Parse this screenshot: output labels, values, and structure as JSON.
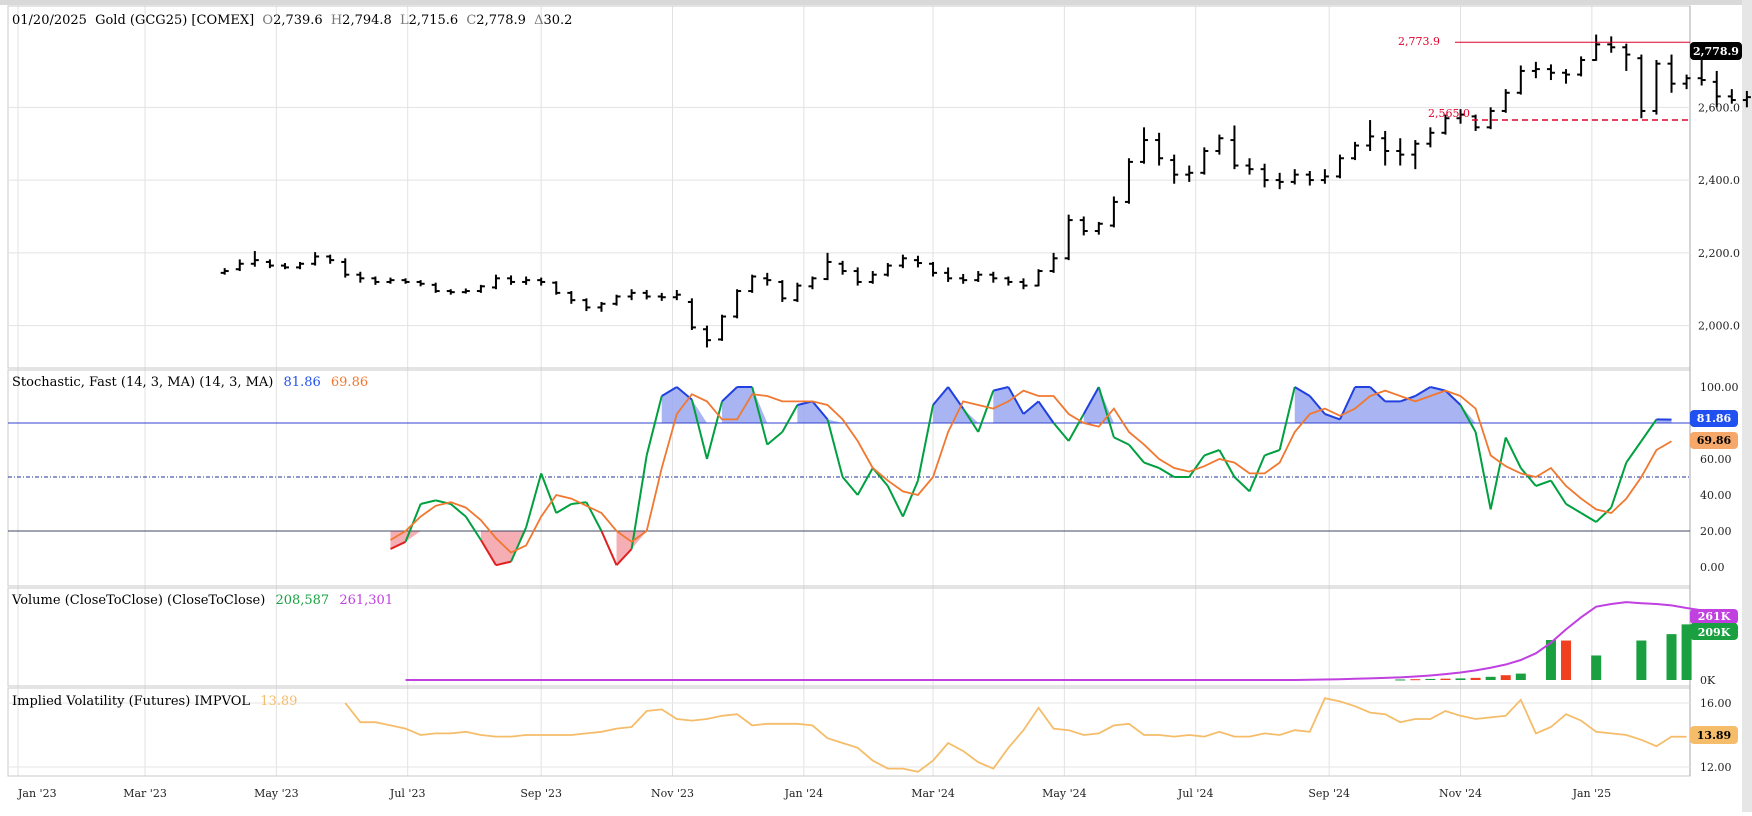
{
  "header": {
    "date": "01/20/2025",
    "symbol": "Gold (GCG25) [COMEX]",
    "open_label": "O",
    "open": "2,739.6",
    "high_label": "H",
    "high": "2,794.8",
    "low_label": "L",
    "low": "2,715.6",
    "close_label": "C",
    "close": "2,778.9",
    "change_label": "Δ",
    "change": "30.2"
  },
  "price_axis": {
    "ticks": [
      "2,000.0",
      "2,200.0",
      "2,400.0",
      "2,600.0"
    ],
    "last_badge": "2,778.9"
  },
  "annotations": {
    "swing_high": "2,773.9",
    "swing_low": "2,565.0"
  },
  "stoch": {
    "title": "Stochastic, Fast (14, 3, MA)  (14, 3, MA)",
    "k_value": "81.86",
    "d_value": "69.86",
    "ticks": [
      "0.00",
      "20.00",
      "40.00",
      "60.00",
      "80.00",
      "100.00"
    ],
    "badge_k": "81.86",
    "badge_d": "69.86"
  },
  "volume": {
    "title": "Volume (CloseToClose)  (CloseToClose)",
    "vol_value": "208,587",
    "oi_value": "261,301",
    "tick_zero": "0K",
    "badge_oi": "261K",
    "badge_vol": "209K"
  },
  "ivol": {
    "title": "Implied Volatility (Futures)  IMPVOL",
    "value": "13.89",
    "ticks": [
      "12.00",
      "16.00"
    ],
    "badge": "13.89"
  },
  "x_axis_labels": [
    "Jan '23",
    "Mar '23",
    "May '23",
    "Jul '23",
    "Sep '23",
    "Nov '23",
    "Jan '24",
    "Mar '24",
    "May '24",
    "Jul '24",
    "Sep '24",
    "Nov '24",
    "Jan '25"
  ],
  "colors": {
    "bar": "#000000",
    "stoch_k": "#00a040",
    "stoch_d": "#f07830",
    "overbought_fill": "#9aa8f0",
    "oversold_fill": "#f4a0a8",
    "vol_up": "#1aa040",
    "vol_down": "#f04020",
    "oi_line": "#c040e0",
    "ivol_line": "#f5bd6a",
    "hi_lo_line": "#e0002a"
  },
  "chart_data": [
    {
      "type": "ohlc",
      "name": "Gold (GCG25) weekly",
      "x_start": "2023-04-07",
      "x_step_days": 7,
      "bars": [
        [
          2145,
          2158,
          2140,
          2150
        ],
        [
          2155,
          2182,
          2150,
          2170
        ],
        [
          2170,
          2205,
          2162,
          2180
        ],
        [
          2175,
          2182,
          2158,
          2165
        ],
        [
          2165,
          2172,
          2155,
          2160
        ],
        [
          2160,
          2175,
          2155,
          2170
        ],
        [
          2170,
          2202,
          2165,
          2190
        ],
        [
          2190,
          2195,
          2170,
          2180
        ],
        [
          2175,
          2185,
          2132,
          2140
        ],
        [
          2140,
          2148,
          2118,
          2130
        ],
        [
          2130,
          2135,
          2112,
          2120
        ],
        [
          2120,
          2132,
          2115,
          2125
        ],
        [
          2125,
          2130,
          2115,
          2120
        ],
        [
          2120,
          2125,
          2108,
          2115
        ],
        [
          2112,
          2118,
          2090,
          2095
        ],
        [
          2095,
          2100,
          2085,
          2092
        ],
        [
          2092,
          2102,
          2088,
          2095
        ],
        [
          2095,
          2112,
          2090,
          2108
        ],
        [
          2105,
          2140,
          2100,
          2130
        ],
        [
          2130,
          2138,
          2112,
          2120
        ],
        [
          2120,
          2135,
          2112,
          2125
        ],
        [
          2125,
          2132,
          2110,
          2120
        ],
        [
          2118,
          2122,
          2085,
          2090
        ],
        [
          2090,
          2095,
          2060,
          2070
        ],
        [
          2070,
          2075,
          2040,
          2050
        ],
        [
          2050,
          2065,
          2038,
          2060
        ],
        [
          2060,
          2085,
          2055,
          2080
        ],
        [
          2080,
          2100,
          2070,
          2090
        ],
        [
          2090,
          2098,
          2072,
          2080
        ],
        [
          2080,
          2090,
          2068,
          2078
        ],
        [
          2078,
          2098,
          2070,
          2085
        ],
        [
          2065,
          2075,
          1988,
          1995
        ],
        [
          1990,
          2000,
          1940,
          1960
        ],
        [
          1962,
          2030,
          1958,
          2025
        ],
        [
          2025,
          2100,
          2020,
          2095
        ],
        [
          2095,
          2140,
          2090,
          2135
        ],
        [
          2130,
          2145,
          2110,
          2125
        ],
        [
          2120,
          2125,
          2065,
          2075
        ],
        [
          2070,
          2118,
          2065,
          2110
        ],
        [
          2108,
          2135,
          2100,
          2130
        ],
        [
          2128,
          2200,
          2125,
          2175
        ],
        [
          2170,
          2178,
          2140,
          2150
        ],
        [
          2150,
          2160,
          2110,
          2120
        ],
        [
          2120,
          2150,
          2115,
          2140
        ],
        [
          2140,
          2172,
          2135,
          2165
        ],
        [
          2165,
          2195,
          2158,
          2185
        ],
        [
          2180,
          2192,
          2160,
          2172
        ],
        [
          2170,
          2175,
          2135,
          2145
        ],
        [
          2145,
          2160,
          2120,
          2130
        ],
        [
          2130,
          2142,
          2115,
          2125
        ],
        [
          2125,
          2150,
          2120,
          2140
        ],
        [
          2140,
          2148,
          2118,
          2130
        ],
        [
          2130,
          2135,
          2110,
          2120
        ],
        [
          2120,
          2130,
          2100,
          2110
        ],
        [
          2110,
          2155,
          2108,
          2150
        ],
        [
          2150,
          2200,
          2145,
          2185
        ],
        [
          2185,
          2305,
          2180,
          2290
        ],
        [
          2290,
          2300,
          2248,
          2260
        ],
        [
          2260,
          2285,
          2250,
          2280
        ],
        [
          2275,
          2355,
          2270,
          2340
        ],
        [
          2340,
          2460,
          2335,
          2450
        ],
        [
          2450,
          2545,
          2445,
          2510
        ],
        [
          2510,
          2530,
          2440,
          2460
        ],
        [
          2455,
          2470,
          2390,
          2415
        ],
        [
          2415,
          2440,
          2395,
          2420
        ],
        [
          2420,
          2490,
          2415,
          2480
        ],
        [
          2480,
          2525,
          2470,
          2515
        ],
        [
          2510,
          2550,
          2430,
          2440
        ],
        [
          2440,
          2460,
          2415,
          2430
        ],
        [
          2430,
          2445,
          2380,
          2400
        ],
        [
          2400,
          2420,
          2375,
          2395
        ],
        [
          2395,
          2430,
          2388,
          2415
        ],
        [
          2415,
          2425,
          2385,
          2400
        ],
        [
          2400,
          2430,
          2390,
          2410
        ],
        [
          2410,
          2470,
          2405,
          2460
        ],
        [
          2460,
          2505,
          2455,
          2495
        ],
        [
          2495,
          2565,
          2480,
          2520
        ],
        [
          2515,
          2535,
          2440,
          2480
        ],
        [
          2480,
          2515,
          2440,
          2470
        ],
        [
          2470,
          2510,
          2430,
          2500
        ],
        [
          2500,
          2545,
          2490,
          2530
        ],
        [
          2530,
          2580,
          2525,
          2570
        ],
        [
          2570,
          2595,
          2555,
          2580
        ],
        [
          2575,
          2580,
          2535,
          2545
        ],
        [
          2545,
          2600,
          2540,
          2590
        ],
        [
          2590,
          2650,
          2585,
          2640
        ],
        [
          2640,
          2715,
          2635,
          2700
        ],
        [
          2700,
          2725,
          2680,
          2705
        ],
        [
          2705,
          2718,
          2675,
          2695
        ],
        [
          2695,
          2705,
          2665,
          2690
        ],
        [
          2690,
          2740,
          2685,
          2730
        ],
        [
          2730,
          2800,
          2728,
          2773
        ],
        [
          2773,
          2795,
          2750,
          2765
        ],
        [
          2765,
          2775,
          2700,
          2745
        ],
        [
          2735,
          2745,
          2570,
          2590
        ],
        [
          2590,
          2730,
          2580,
          2720
        ],
        [
          2720,
          2745,
          2640,
          2665
        ],
        [
          2665,
          2690,
          2650,
          2680
        ],
        [
          2680,
          2740,
          2660,
          2675
        ],
        [
          2670,
          2700,
          2600,
          2630
        ],
        [
          2630,
          2650,
          2610,
          2620
        ],
        [
          2620,
          2645,
          2600,
          2628
        ],
        [
          2625,
          2705,
          2620,
          2700
        ],
        [
          2700,
          2760,
          2695,
          2748
        ],
        [
          2739.6,
          2794.8,
          2715.6,
          2778.9
        ]
      ],
      "ylim": [
        1900,
        2840
      ]
    },
    {
      "type": "line",
      "name": "Stochastic Fast",
      "x_start": "2023-06-23",
      "x_step_days": 7,
      "series": [
        {
          "name": "%K",
          "values": [
            10,
            14,
            35,
            37,
            35,
            28,
            15,
            1,
            3,
            22,
            52,
            30,
            35,
            36,
            20,
            1,
            10,
            62,
            95,
            100,
            93,
            60,
            92,
            100,
            100,
            68,
            75,
            90,
            92,
            82,
            50,
            40,
            55,
            45,
            28,
            48,
            90,
            100,
            88,
            75,
            98,
            100,
            85,
            92,
            80,
            70,
            85,
            100,
            72,
            68,
            58,
            55,
            50,
            50,
            62,
            65,
            50,
            42,
            62,
            65,
            100,
            95,
            85,
            82,
            100,
            100,
            92,
            92,
            95,
            100,
            98,
            90,
            75,
            32,
            72,
            55,
            45,
            48,
            35,
            30,
            25,
            33,
            58,
            70,
            82,
            81.86
          ]
        },
        {
          "name": "%D",
          "values": [
            15,
            20,
            28,
            34,
            36,
            33,
            26,
            16,
            8,
            12,
            28,
            40,
            38,
            34,
            30,
            20,
            14,
            20,
            55,
            85,
            96,
            92,
            82,
            82,
            96,
            95,
            92,
            92,
            92,
            90,
            82,
            70,
            55,
            48,
            42,
            40,
            50,
            75,
            92,
            90,
            88,
            92,
            98,
            95,
            95,
            85,
            80,
            78,
            88,
            75,
            68,
            60,
            55,
            53,
            56,
            60,
            58,
            52,
            52,
            58,
            75,
            85,
            88,
            84,
            88,
            95,
            98,
            95,
            92,
            95,
            98,
            95,
            88,
            62,
            56,
            52,
            50,
            55,
            45,
            38,
            32,
            30,
            38,
            50,
            65,
            69.86
          ]
        }
      ],
      "ylim": [
        0,
        100
      ]
    },
    {
      "type": "bar",
      "name": "Volume",
      "x_start": "2023-06-30",
      "x_step_days": 7,
      "series": [
        {
          "name": "Open Interest",
          "values": [
            0,
            0,
            0,
            0,
            0,
            0,
            0,
            0,
            0,
            0,
            0,
            0,
            0,
            0,
            0,
            0,
            0,
            0,
            0,
            0,
            0,
            0,
            0,
            0,
            0,
            0,
            0,
            0,
            0,
            0,
            0,
            0,
            0,
            0,
            0,
            0,
            0,
            0,
            0,
            0,
            0,
            0,
            0,
            0,
            0,
            0,
            0,
            0,
            0,
            0,
            0,
            0,
            0,
            0,
            0,
            0,
            0,
            0,
            0,
            0,
            1000,
            2000,
            3000,
            4500,
            6000,
            8000,
            10000,
            13000,
            17000,
            22000,
            28000,
            36000,
            46000,
            58000,
            75000,
            100000,
            140000,
            190000,
            235000,
            275000,
            285000,
            292000,
            288000,
            285000,
            280000,
            270000,
            261301
          ]
        },
        {
          "name": "Volume",
          "values": [
            0,
            0,
            0,
            0,
            0,
            0,
            0,
            0,
            0,
            0,
            0,
            0,
            0,
            0,
            0,
            0,
            0,
            0,
            0,
            0,
            0,
            0,
            0,
            0,
            0,
            0,
            0,
            0,
            0,
            0,
            0,
            0,
            0,
            0,
            0,
            0,
            0,
            0,
            0,
            0,
            0,
            0,
            0,
            0,
            0,
            0,
            0,
            0,
            0,
            0,
            0,
            0,
            0,
            0,
            0,
            0,
            0,
            0,
            0,
            0,
            0,
            0,
            0,
            0,
            0,
            0,
            2000,
            3000,
            4000,
            5000,
            6000,
            8000,
            12000,
            18000,
            24000,
            0,
            150000,
            148000,
            0,
            92000,
            0,
            0,
            148000,
            0,
            172000,
            208587
          ]
        }
      ],
      "ylim": [
        0,
        300000
      ]
    },
    {
      "type": "line",
      "name": "Implied Volatility",
      "x_start": "2023-06-02",
      "x_step_days": 7,
      "series": [
        {
          "name": "IMPVOL",
          "values": [
            16.0,
            14.8,
            14.8,
            14.6,
            14.4,
            14.0,
            14.1,
            14.1,
            14.2,
            14.0,
            13.9,
            13.9,
            14.0,
            14.0,
            14.0,
            14.0,
            14.1,
            14.2,
            14.4,
            14.5,
            15.5,
            15.6,
            15.0,
            14.9,
            15.0,
            15.2,
            15.3,
            14.6,
            14.7,
            14.7,
            14.7,
            14.6,
            13.8,
            13.5,
            13.2,
            12.4,
            11.9,
            11.9,
            11.7,
            12.4,
            13.5,
            13.0,
            12.3,
            11.9,
            13.2,
            14.3,
            15.7,
            14.4,
            14.3,
            14.0,
            14.1,
            14.6,
            14.7,
            14.0,
            14.0,
            13.9,
            14.0,
            13.9,
            14.2,
            13.9,
            13.9,
            14.1,
            14.0,
            14.3,
            14.2,
            16.3,
            16.1,
            15.8,
            15.4,
            15.3,
            14.8,
            15.0,
            15.0,
            15.5,
            15.2,
            15.0,
            15.1,
            15.2,
            16.2,
            14.1,
            14.5,
            15.3,
            14.9,
            14.2,
            14.1,
            14.0,
            13.7,
            13.3,
            13.9,
            13.89
          ]
        }
      ],
      "ylim": [
        11.5,
        16.5
      ]
    }
  ]
}
